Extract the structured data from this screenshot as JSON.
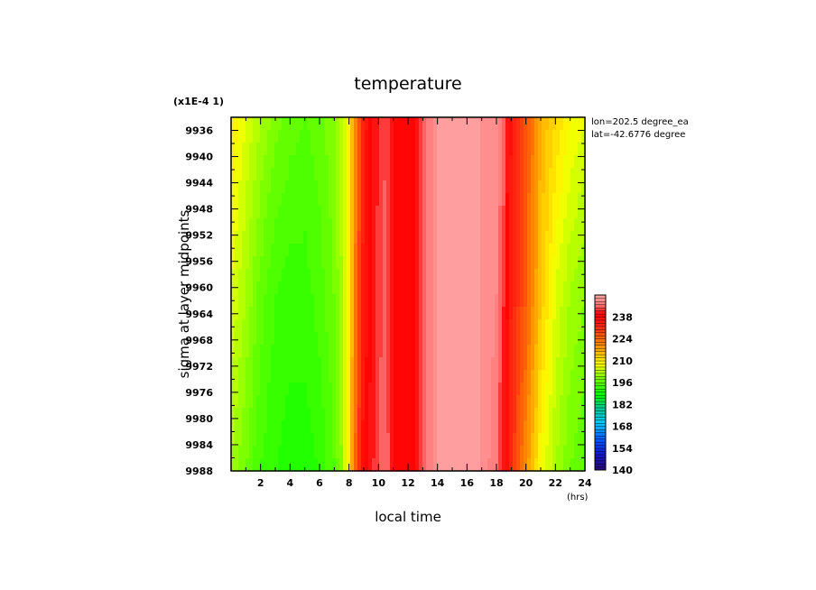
{
  "chart_data": {
    "type": "heatmap",
    "title": "temperature",
    "xlabel": "local time",
    "x_unit": "(hrs)",
    "ylabel": "sigma at layer midpoints",
    "y_scale_note": "(x1E-4 1)",
    "annotations": [
      "lon=202.5 degree_ea",
      "lat=-42.6776 degree"
    ],
    "xlim": [
      0,
      24
    ],
    "ylim": [
      9934,
      9988
    ],
    "y_inverted": true,
    "x_ticks": [
      "2",
      "4",
      "6",
      "8",
      "10",
      "12",
      "14",
      "16",
      "18",
      "20",
      "22",
      "24"
    ],
    "y_ticks": [
      "9936",
      "9940",
      "9944",
      "9948",
      "9952",
      "9956",
      "9960",
      "9964",
      "9968",
      "9972",
      "9976",
      "9980",
      "9984",
      "9988"
    ],
    "colorbar": {
      "min": 140,
      "max": 252,
      "step": 2,
      "labels": [
        "140",
        "154",
        "168",
        "182",
        "196",
        "210",
        "224",
        "238"
      ]
    },
    "x": [
      0,
      1,
      2,
      3,
      4,
      5,
      6,
      7,
      7.5,
      8,
      8.5,
      9,
      9.5,
      10,
      10.5,
      11,
      11.5,
      12,
      12.5,
      13,
      14,
      15,
      16,
      17,
      18,
      18.5,
      19,
      19.5,
      20,
      20.5,
      21,
      22,
      23,
      24
    ],
    "series": [
      {
        "name": "9934",
        "values": [
          210,
          206,
          202,
          199,
          197,
          196,
          197,
          200,
          203,
          210,
          222,
          234,
          239,
          242,
          244,
          240,
          238,
          239,
          240,
          244,
          250,
          250,
          250,
          250,
          248,
          246,
          236,
          230,
          226,
          222,
          216,
          212,
          208,
          206
        ]
      },
      {
        "name": "9961",
        "values": [
          206,
          202,
          197,
          194,
          193,
          193,
          195,
          198,
          202,
          210,
          224,
          236,
          240,
          243,
          245,
          240,
          238,
          239,
          240,
          244,
          250,
          250,
          250,
          250,
          248,
          242,
          234,
          230,
          226,
          220,
          214,
          206,
          202,
          200
        ]
      },
      {
        "name": "9988",
        "values": [
          202,
          198,
          194,
          192,
          191,
          191,
          192,
          196,
          200,
          210,
          226,
          238,
          241,
          244,
          246,
          240,
          238,
          239,
          240,
          244,
          250,
          250,
          250,
          250,
          246,
          240,
          232,
          226,
          220,
          214,
          208,
          202,
          198,
          196
        ]
      }
    ]
  }
}
